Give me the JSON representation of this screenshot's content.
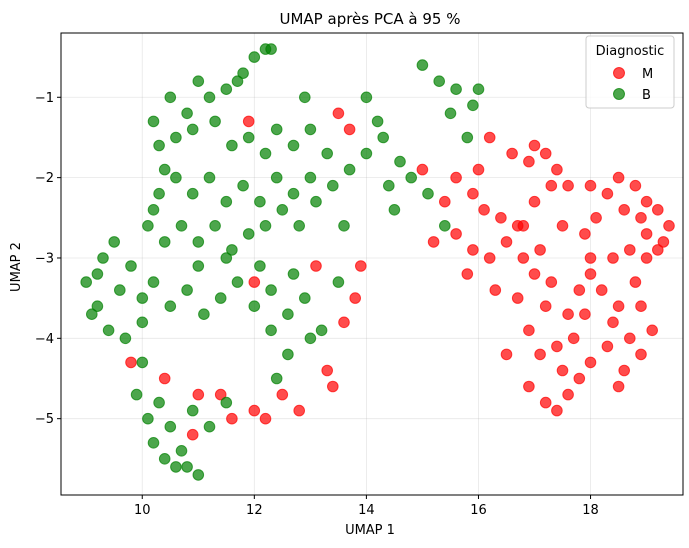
{
  "chart_data": {
    "type": "scatter",
    "title": "UMAP après PCA à 95 %",
    "xlabel": "UMAP 1",
    "ylabel": "UMAP 2",
    "xlim": [
      8.55,
      19.65
    ],
    "ylim": [
      -5.95,
      -0.2
    ],
    "xticks": [
      10,
      12,
      14,
      16,
      18
    ],
    "yticks": [
      -5,
      -4,
      -3,
      -2,
      -1
    ],
    "grid": true,
    "legend": {
      "title": "Diagnostic",
      "position": "top-right"
    },
    "series": [
      {
        "name": "M",
        "color": "#ff0000",
        "points": [
          [
            16.2,
            -1.5
          ],
          [
            16.6,
            -1.7
          ],
          [
            16.9,
            -1.8
          ],
          [
            17.0,
            -1.6
          ],
          [
            17.2,
            -1.7
          ],
          [
            17.4,
            -1.9
          ],
          [
            17.6,
            -2.1
          ],
          [
            15.6,
            -2.0
          ],
          [
            15.9,
            -2.2
          ],
          [
            16.1,
            -2.4
          ],
          [
            16.4,
            -2.5
          ],
          [
            16.7,
            -2.6
          ],
          [
            17.0,
            -2.3
          ],
          [
            17.3,
            -2.1
          ],
          [
            15.2,
            -2.8
          ],
          [
            15.6,
            -2.7
          ],
          [
            15.9,
            -2.9
          ],
          [
            16.2,
            -3.0
          ],
          [
            16.5,
            -2.8
          ],
          [
            16.8,
            -2.6
          ],
          [
            16.7,
            -3.5
          ],
          [
            16.9,
            -3.9
          ],
          [
            16.5,
            -4.2
          ],
          [
            17.1,
            -4.2
          ],
          [
            17.4,
            -4.1
          ],
          [
            17.6,
            -3.7
          ],
          [
            17.8,
            -3.4
          ],
          [
            18.0,
            -3.2
          ],
          [
            18.4,
            -3.0
          ],
          [
            18.7,
            -2.9
          ],
          [
            19.0,
            -2.7
          ],
          [
            19.3,
            -2.8
          ],
          [
            19.4,
            -2.6
          ],
          [
            19.2,
            -2.4
          ],
          [
            19.0,
            -2.3
          ],
          [
            18.8,
            -2.1
          ],
          [
            18.5,
            -2.0
          ],
          [
            18.3,
            -2.2
          ],
          [
            18.1,
            -2.5
          ],
          [
            18.6,
            -2.4
          ],
          [
            18.9,
            -2.5
          ],
          [
            18.0,
            -3.0
          ],
          [
            18.2,
            -3.4
          ],
          [
            18.5,
            -3.6
          ],
          [
            18.8,
            -3.3
          ],
          [
            19.0,
            -3.0
          ],
          [
            18.4,
            -3.8
          ],
          [
            18.7,
            -4.0
          ],
          [
            18.9,
            -4.2
          ],
          [
            18.6,
            -4.4
          ],
          [
            18.3,
            -4.1
          ],
          [
            18.0,
            -4.3
          ],
          [
            17.8,
            -4.5
          ],
          [
            17.6,
            -4.7
          ],
          [
            17.4,
            -4.9
          ],
          [
            17.5,
            -4.4
          ],
          [
            17.7,
            -4.0
          ],
          [
            17.9,
            -3.7
          ],
          [
            17.2,
            -3.6
          ],
          [
            17.0,
            -3.2
          ],
          [
            16.8,
            -3.0
          ],
          [
            16.3,
            -3.4
          ],
          [
            15.8,
            -3.2
          ],
          [
            17.9,
            -2.7
          ],
          [
            17.5,
            -2.6
          ],
          [
            17.1,
            -2.9
          ],
          [
            17.3,
            -3.3
          ],
          [
            16.9,
            -4.6
          ],
          [
            17.2,
            -4.8
          ],
          [
            19.1,
            -3.9
          ],
          [
            18.9,
            -3.6
          ],
          [
            18.5,
            -4.6
          ],
          [
            19.2,
            -2.9
          ],
          [
            18.0,
            -2.1
          ],
          [
            15.0,
            -1.9
          ],
          [
            15.4,
            -2.3
          ],
          [
            13.5,
            -1.2
          ],
          [
            13.7,
            -1.4
          ],
          [
            13.9,
            -3.1
          ],
          [
            13.8,
            -3.5
          ],
          [
            13.6,
            -3.8
          ],
          [
            13.3,
            -4.4
          ],
          [
            13.4,
            -4.6
          ],
          [
            12.5,
            -4.7
          ],
          [
            12.8,
            -4.9
          ],
          [
            12.2,
            -5.0
          ],
          [
            12.0,
            -4.9
          ],
          [
            11.6,
            -5.0
          ],
          [
            11.4,
            -4.7
          ],
          [
            11.0,
            -4.7
          ],
          [
            10.9,
            -5.2
          ],
          [
            10.4,
            -4.5
          ],
          [
            9.8,
            -4.3
          ],
          [
            12.0,
            -3.3
          ],
          [
            13.1,
            -3.1
          ],
          [
            11.9,
            -1.3
          ],
          [
            16.0,
            -1.9
          ]
        ]
      },
      {
        "name": "B",
        "color": "#008000",
        "points": [
          [
            12.0,
            -0.5
          ],
          [
            12.2,
            -0.4
          ],
          [
            11.8,
            -0.7
          ],
          [
            11.5,
            -0.9
          ],
          [
            11.2,
            -1.0
          ],
          [
            11.0,
            -0.8
          ],
          [
            10.8,
            -1.2
          ],
          [
            10.5,
            -1.0
          ],
          [
            10.2,
            -1.3
          ],
          [
            10.3,
            -1.6
          ],
          [
            10.6,
            -1.5
          ],
          [
            10.9,
            -1.4
          ],
          [
            11.3,
            -1.3
          ],
          [
            11.6,
            -1.6
          ],
          [
            11.9,
            -1.5
          ],
          [
            12.2,
            -1.7
          ],
          [
            12.4,
            -1.4
          ],
          [
            12.7,
            -1.6
          ],
          [
            13.0,
            -1.4
          ],
          [
            13.3,
            -1.7
          ],
          [
            13.0,
            -2.0
          ],
          [
            12.7,
            -2.2
          ],
          [
            12.4,
            -2.0
          ],
          [
            12.1,
            -2.3
          ],
          [
            11.8,
            -2.1
          ],
          [
            11.5,
            -2.3
          ],
          [
            11.2,
            -2.0
          ],
          [
            10.9,
            -2.2
          ],
          [
            10.6,
            -2.0
          ],
          [
            10.3,
            -2.2
          ],
          [
            10.1,
            -2.6
          ],
          [
            10.4,
            -2.8
          ],
          [
            10.7,
            -2.6
          ],
          [
            11.0,
            -2.8
          ],
          [
            11.3,
            -2.6
          ],
          [
            11.6,
            -2.9
          ],
          [
            11.9,
            -2.7
          ],
          [
            12.2,
            -2.6
          ],
          [
            12.5,
            -2.4
          ],
          [
            12.8,
            -2.6
          ],
          [
            13.1,
            -2.3
          ],
          [
            13.4,
            -2.1
          ],
          [
            13.7,
            -1.9
          ],
          [
            14.0,
            -1.7
          ],
          [
            14.3,
            -1.5
          ],
          [
            14.6,
            -1.8
          ],
          [
            14.4,
            -2.1
          ],
          [
            14.2,
            -1.3
          ],
          [
            14.0,
            -1.0
          ],
          [
            15.0,
            -0.6
          ],
          [
            15.3,
            -0.8
          ],
          [
            15.6,
            -0.9
          ],
          [
            15.9,
            -1.1
          ],
          [
            16.0,
            -0.9
          ],
          [
            15.5,
            -1.2
          ],
          [
            15.8,
            -1.5
          ],
          [
            14.8,
            -2.0
          ],
          [
            14.5,
            -2.4
          ],
          [
            15.4,
            -2.6
          ],
          [
            15.1,
            -2.2
          ],
          [
            9.0,
            -3.3
          ],
          [
            9.2,
            -3.6
          ],
          [
            9.4,
            -3.9
          ],
          [
            9.6,
            -3.4
          ],
          [
            9.3,
            -3.0
          ],
          [
            9.5,
            -2.8
          ],
          [
            9.8,
            -3.1
          ],
          [
            10.0,
            -3.5
          ],
          [
            10.2,
            -3.3
          ],
          [
            10.5,
            -3.6
          ],
          [
            10.8,
            -3.4
          ],
          [
            11.1,
            -3.7
          ],
          [
            11.4,
            -3.5
          ],
          [
            11.7,
            -3.3
          ],
          [
            12.0,
            -3.6
          ],
          [
            12.3,
            -3.4
          ],
          [
            12.6,
            -3.7
          ],
          [
            12.9,
            -3.5
          ],
          [
            13.2,
            -3.9
          ],
          [
            13.5,
            -3.3
          ],
          [
            12.7,
            -3.2
          ],
          [
            12.1,
            -3.1
          ],
          [
            11.5,
            -3.0
          ],
          [
            9.7,
            -4.0
          ],
          [
            10.0,
            -4.3
          ],
          [
            9.9,
            -4.7
          ],
          [
            10.1,
            -5.0
          ],
          [
            10.3,
            -4.8
          ],
          [
            10.5,
            -5.1
          ],
          [
            10.7,
            -5.4
          ],
          [
            10.4,
            -5.5
          ],
          [
            10.2,
            -5.3
          ],
          [
            10.8,
            -5.6
          ],
          [
            11.0,
            -5.7
          ],
          [
            10.6,
            -5.6
          ],
          [
            10.9,
            -4.9
          ],
          [
            11.2,
            -5.1
          ],
          [
            11.5,
            -4.8
          ],
          [
            12.4,
            -4.5
          ],
          [
            12.6,
            -4.2
          ],
          [
            13.0,
            -4.0
          ],
          [
            12.3,
            -3.9
          ],
          [
            10.0,
            -3.8
          ],
          [
            9.1,
            -3.7
          ],
          [
            9.2,
            -3.2
          ],
          [
            12.3,
            -0.4
          ],
          [
            11.7,
            -0.8
          ],
          [
            10.4,
            -1.9
          ],
          [
            13.6,
            -2.6
          ],
          [
            11.0,
            -3.1
          ],
          [
            10.2,
            -2.4
          ],
          [
            12.9,
            -1.0
          ]
        ]
      }
    ]
  }
}
